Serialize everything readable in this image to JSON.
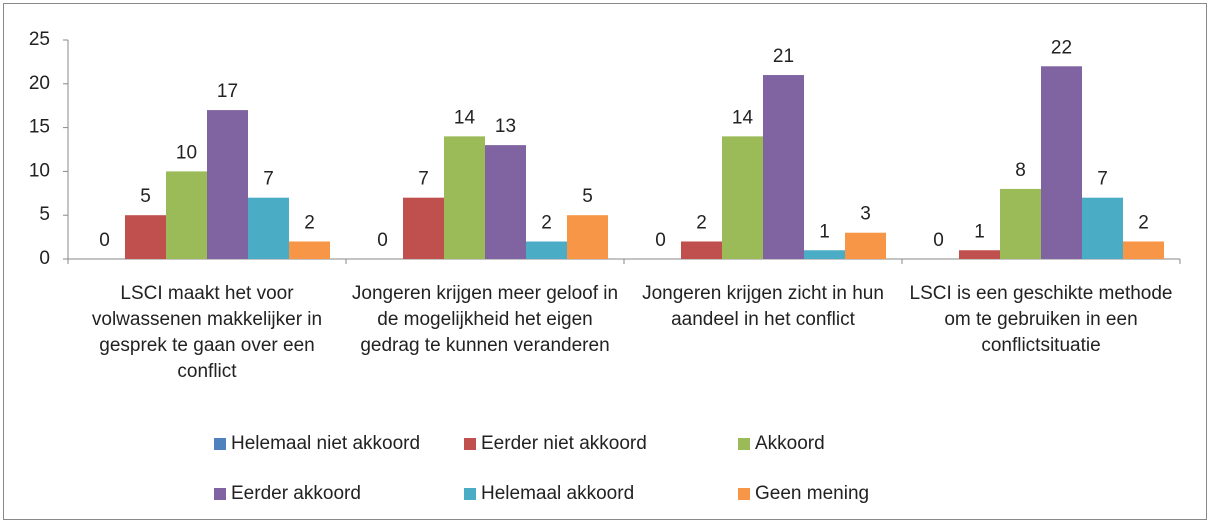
{
  "chart_data": {
    "type": "bar",
    "categories": [
      "LSCI maakt het voor volwassenen makkelijker in gesprek te gaan over een conflict",
      "Jongeren krijgen meer geloof in de mogelijkheid het eigen gedrag te kunnen veranderen",
      "Jongeren krijgen zicht in hun aandeel in het conflict",
      "LSCI is een geschikte methode om te gebruiken in een conflictsituatie"
    ],
    "series": [
      {
        "name": "Helemaal niet akkoord",
        "color": "#4f81bd",
        "values": [
          0,
          0,
          0,
          0
        ]
      },
      {
        "name": "Eerder niet akkoord",
        "color": "#c0504d",
        "values": [
          5,
          7,
          2,
          1
        ]
      },
      {
        "name": "Akkoord",
        "color": "#9bbb59",
        "values": [
          10,
          14,
          14,
          8
        ]
      },
      {
        "name": "Eerder akkoord",
        "color": "#8064a2",
        "values": [
          17,
          13,
          21,
          22
        ]
      },
      {
        "name": "Helemaal akkoord",
        "color": "#4bacc6",
        "values": [
          7,
          2,
          1,
          7
        ]
      },
      {
        "name": "Geen mening",
        "color": "#f79646",
        "values": [
          2,
          5,
          3,
          2
        ]
      }
    ],
    "ylim": [
      0,
      25
    ],
    "yticks": [
      0,
      5,
      10,
      15,
      20,
      25
    ],
    "legend": "bottom"
  }
}
